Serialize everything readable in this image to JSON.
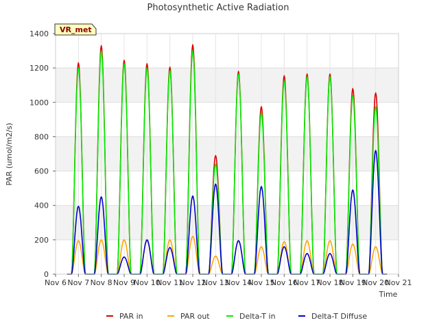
{
  "chart_data": {
    "type": "line",
    "title": "Photosynthetic Active Radiation",
    "xlabel": "Time",
    "ylabel": "PAR (umol/m2/s)",
    "site_tag": "VR_met",
    "xlim": [
      6,
      21
    ],
    "ylim": [
      0,
      1400
    ],
    "x_ticks": [
      6,
      7,
      8,
      9,
      10,
      11,
      12,
      13,
      14,
      15,
      16,
      17,
      18,
      19,
      20,
      21
    ],
    "x_tick_labels": [
      "Nov 6",
      "Nov 7",
      "Nov 8",
      "Nov 9",
      "Nov 10",
      "Nov 11",
      "Nov 12",
      "Nov 13",
      "Nov 14",
      "Nov 15",
      "Nov 16",
      "Nov 17",
      "Nov 18",
      "Nov 19",
      "Nov 20",
      "Nov 21"
    ],
    "y_ticks": [
      0,
      200,
      400,
      600,
      800,
      1000,
      1200,
      1400
    ],
    "y_tick_labels": [
      "0",
      "200",
      "400",
      "600",
      "800",
      "1000",
      "1200",
      "1400"
    ],
    "legend_position": "bottom-center",
    "day_centers": [
      7.0,
      8.0,
      9.0,
      10.0,
      11.0,
      12.0,
      13.0,
      14.0,
      15.0,
      16.0,
      17.0,
      18.0,
      19.0,
      20.0
    ],
    "series": [
      {
        "name": "PAR in",
        "color": "#dd0000",
        "peaks": [
          1230,
          1330,
          1245,
          1225,
          1205,
          1335,
          690,
          1180,
          975,
          1155,
          1165,
          1165,
          1080,
          1055
        ]
      },
      {
        "name": "PAR out",
        "color": "#ffa500",
        "peaks": [
          195,
          200,
          200,
          195,
          200,
          220,
          105,
          195,
          160,
          190,
          195,
          195,
          175,
          160
        ]
      },
      {
        "name": "Delta-T in",
        "color": "#00ee00",
        "peaks": [
          1200,
          1300,
          1225,
          1200,
          1185,
          1300,
          640,
          1165,
          940,
          1125,
          1150,
          1150,
          1040,
          975
        ]
      },
      {
        "name": "Delta-T Diffuse",
        "color": "#0000cc",
        "peaks": [
          395,
          450,
          100,
          200,
          155,
          455,
          525,
          195,
          510,
          160,
          120,
          120,
          490,
          720
        ]
      }
    ]
  }
}
